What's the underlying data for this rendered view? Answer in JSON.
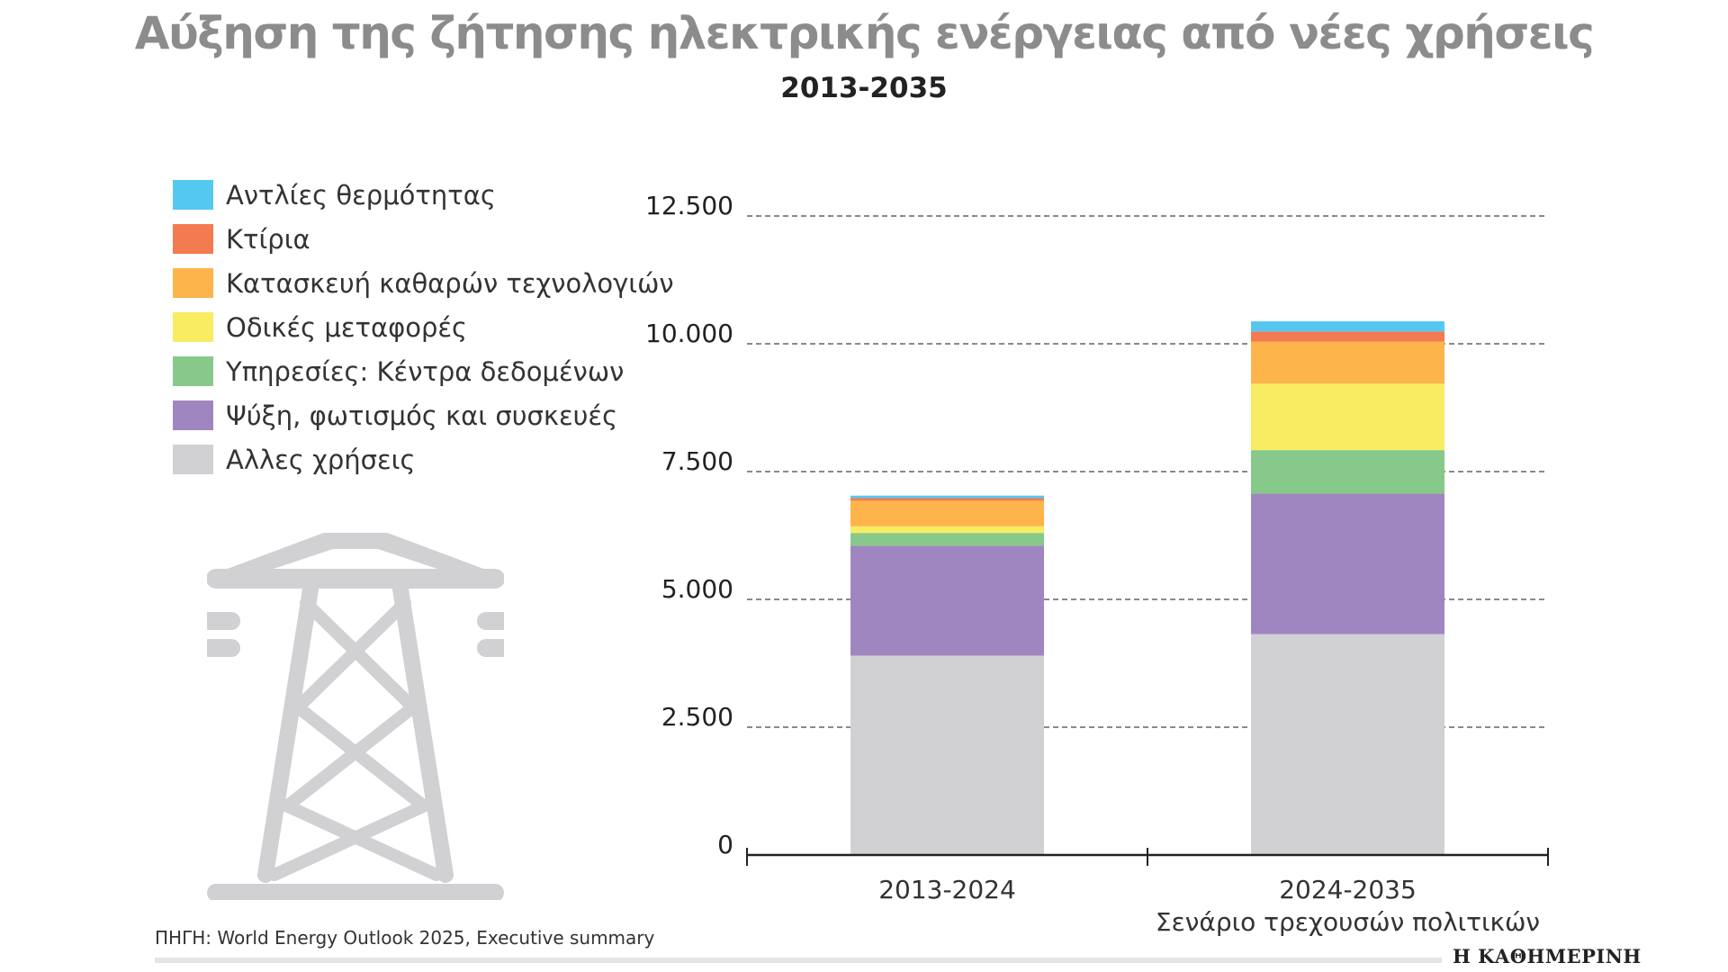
{
  "header": {
    "title": "Αύξηση της ζήτησης ηλεκτρικής ενέργειας από νέες χρήσεις",
    "subtitle": "2013-2035"
  },
  "legend": [
    {
      "label": "Αντλίες θερμότητας",
      "color": "#55c8f2"
    },
    {
      "label": "Κτίρια",
      "color": "#f47a50"
    },
    {
      "label": "Κατασκευή καθαρών τεχνολογιών",
      "color": "#fdb44b"
    },
    {
      "label": "Οδικές μεταφορές",
      "color": "#f8ec62"
    },
    {
      "label": "Υπηρεσίες: Κέντρα δεδομένων",
      "color": "#86c98a"
    },
    {
      "label": "Ψύξη, φωτισμός και συσκευές",
      "color": "#a086c0"
    },
    {
      "label": "Αλλες χρήσεις",
      "color": "#d1d1d3"
    }
  ],
  "icon": {
    "name": "power-pylon-icon",
    "color": "#d1d1d3"
  },
  "chart_data": {
    "type": "bar",
    "stacked": true,
    "categories": [
      [
        "2013-2024"
      ],
      [
        "2024-2035",
        "Σενάριο τρεχουσών πολιτικών"
      ]
    ],
    "series": [
      {
        "name": "Αλλες χρήσεις",
        "color": "#d1d1d3",
        "values": [
          3900,
          4320
        ]
      },
      {
        "name": "Ψύξη, φωτισμός και συσκευές",
        "color": "#a086c0",
        "values": [
          2150,
          2750
        ]
      },
      {
        "name": "Υπηρεσίες: Κέντρα δεδομένων",
        "color": "#86c98a",
        "values": [
          250,
          850
        ]
      },
      {
        "name": "Οδικές μεταφορές",
        "color": "#f8ec62",
        "values": [
          130,
          1300
        ]
      },
      {
        "name": "Κατασκευή καθαρών τεχνολογιών",
        "color": "#fdb44b",
        "values": [
          500,
          820
        ]
      },
      {
        "name": "Κτίρια",
        "color": "#f47a50",
        "values": [
          50,
          200
        ]
      },
      {
        "name": "Αντλίες θερμότητας",
        "color": "#55c8f2",
        "values": [
          50,
          200
        ]
      }
    ],
    "yticks": [
      "0",
      "2.500",
      "5.000",
      "7.500",
      "10.000",
      "12.500"
    ],
    "ylim": [
      0,
      12500
    ],
    "grid": true,
    "legend_position": "left"
  },
  "footer": {
    "source": "ΠΗΓΗ: World Energy Outlook 2025, Executive summary",
    "brand": "Η ΚΑΘΗΜΕΡΙΝΗ"
  }
}
